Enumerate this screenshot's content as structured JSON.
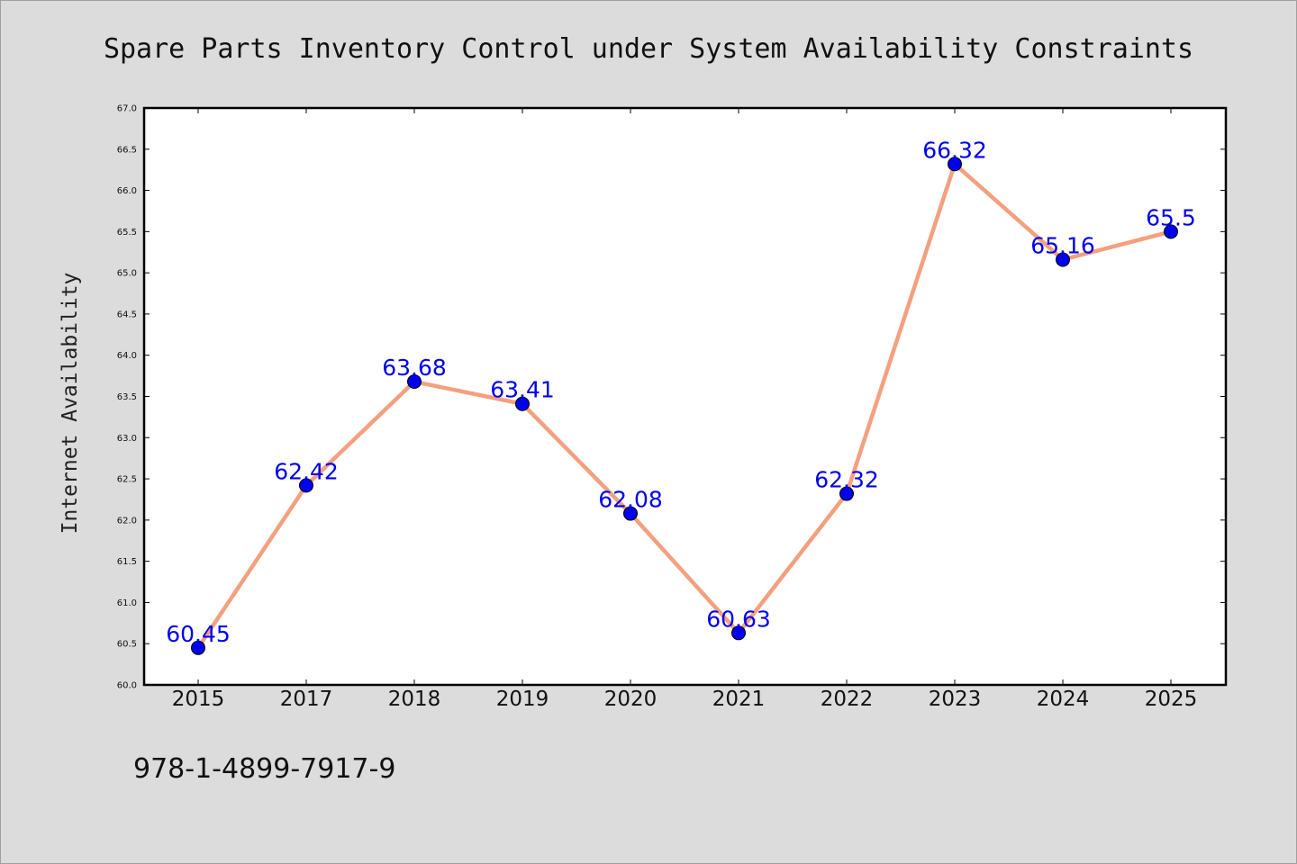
{
  "chart_data": {
    "type": "line",
    "title": "Spare Parts Inventory Control under System Availability Constraints",
    "xlabel": "",
    "ylabel": "Internet Availability",
    "categories": [
      "2015",
      "2017",
      "2018",
      "2019",
      "2020",
      "2021",
      "2022",
      "2023",
      "2024",
      "2025"
    ],
    "series": [
      {
        "values": [
          60.45,
          62.42,
          63.68,
          63.41,
          62.08,
          60.63,
          62.32,
          66.32,
          65.16,
          65.5
        ],
        "labels": [
          "60.45",
          "62.42",
          "63.68",
          "63.41",
          "62.08",
          "60.63",
          "62.32",
          "66.32",
          "65.16",
          "65.5"
        ]
      }
    ],
    "ylim": [
      60.0,
      67.0
    ],
    "yticks": [
      "60.0",
      "60.5",
      "61.0",
      "61.5",
      "62.0",
      "62.5",
      "63.0",
      "63.5",
      "64.0",
      "64.5",
      "65.0",
      "65.5",
      "66.0",
      "66.5",
      "67.0"
    ],
    "grid": false,
    "legend": "none",
    "colors": {
      "line": "#f4a07e",
      "marker": "#0000ee",
      "data_label": "#0000ee",
      "plot_background": "#ffffff",
      "figure_background": "#dcdcdc"
    }
  },
  "footer": {
    "isbn": "978-1-4899-7917-9"
  }
}
